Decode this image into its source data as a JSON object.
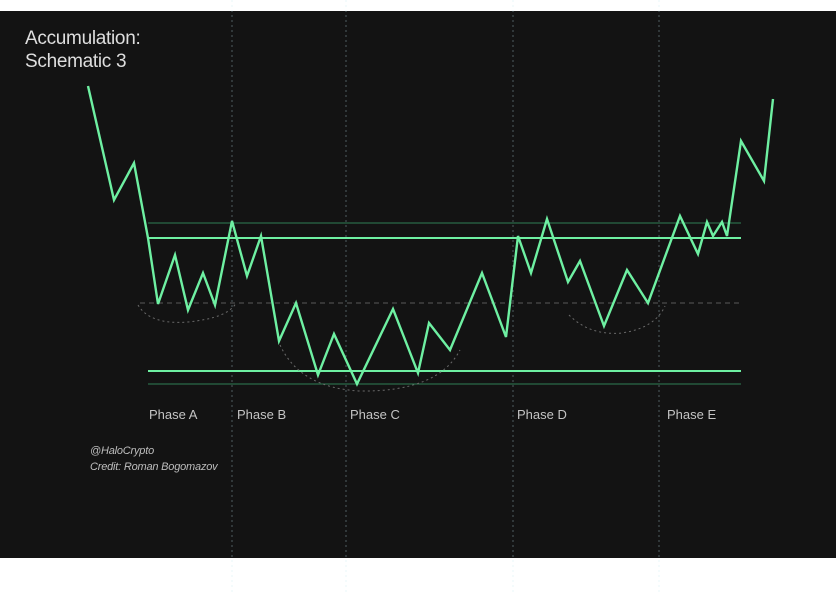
{
  "title": {
    "line1": "Accumulation:",
    "line2": "Schematic 3"
  },
  "phases": [
    "Phase A",
    "Phase B",
    "Phase C",
    "Phase D",
    "Phase E"
  ],
  "credits": {
    "handle": "@HaloCrypto",
    "author": "Credit: Roman Bogomazov"
  },
  "colors": {
    "panel_background": "#131313",
    "price_line": "#6ef0a2",
    "range_line": "#6ef0a2",
    "faint_line": "#2f7f56",
    "phase_divider": "#bfe9f2",
    "dashed_midline": "#5a5a5a",
    "annotation_ellipse": "#6a6a6a",
    "text": "#dedede"
  }
}
